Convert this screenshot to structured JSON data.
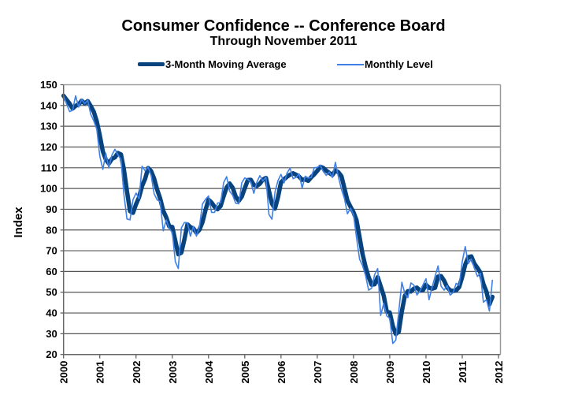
{
  "chart_data": {
    "type": "line",
    "title": "Consumer Confidence -- Conference Board",
    "subtitle": "Through November 2011",
    "xlabel": "",
    "ylabel": "Index",
    "ylim": [
      20,
      150
    ],
    "yticks": [
      20,
      30,
      40,
      50,
      60,
      70,
      80,
      90,
      100,
      110,
      120,
      130,
      140,
      150
    ],
    "xlim": [
      2000,
      2012
    ],
    "xticks": [
      "2000",
      "2001",
      "2002",
      "2003",
      "2004",
      "2005",
      "2006",
      "2007",
      "2008",
      "2009",
      "2010",
      "2011",
      "2012"
    ],
    "grid": true,
    "legend_position": "top-center",
    "start": "2000-01",
    "frequency": "monthly",
    "series": [
      {
        "name": "3-Month Moving Average",
        "color": "#08437e",
        "derived_from": "Monthly Level",
        "values": []
      },
      {
        "name": "Monthly Level",
        "color": "#3e80e6",
        "values": [
          144.7,
          140.8,
          137.1,
          137.7,
          144.7,
          139.2,
          143.0,
          140.8,
          142.5,
          135.8,
          132.6,
          128.6,
          115.7,
          109.2,
          116.9,
          109.9,
          116.1,
          118.9,
          116.3,
          114.0,
          97.0,
          85.3,
          84.9,
          94.6,
          97.8,
          95.0,
          110.7,
          108.5,
          110.3,
          106.3,
          97.4,
          94.5,
          93.7,
          79.6,
          84.9,
          80.7,
          78.8,
          64.8,
          61.4,
          81.0,
          83.6,
          83.5,
          77.0,
          81.7,
          77.0,
          81.7,
          92.5,
          94.8,
          96.4,
          88.5,
          88.5,
          93.0,
          93.1,
          102.8,
          105.7,
          98.7,
          96.7,
          92.9,
          92.6,
          102.7,
          105.1,
          104.4,
          103.0,
          97.7,
          103.1,
          106.2,
          103.6,
          105.5,
          87.5,
          85.2,
          98.3,
          103.8,
          106.8,
          102.7,
          107.5,
          109.8,
          104.7,
          105.4,
          107.0,
          100.2,
          105.9,
          105.1,
          105.3,
          110.0,
          110.2,
          111.2,
          108.2,
          106.3,
          108.0,
          105.3,
          112.6,
          105.6,
          99.5,
          95.2,
          87.8,
          90.6,
          87.3,
          76.4,
          65.9,
          62.8,
          58.1,
          51.0,
          51.9,
          58.5,
          61.4,
          38.8,
          44.7,
          38.6,
          37.4,
          25.3,
          26.9,
          40.8,
          54.8,
          49.3,
          47.4,
          54.5,
          53.4,
          48.7,
          50.6,
          53.6,
          56.5,
          46.4,
          52.3,
          57.7,
          62.7,
          52.9,
          51.0,
          53.2,
          48.6,
          49.9,
          54.3,
          53.3,
          64.8,
          72.0,
          63.8,
          66.0,
          61.7,
          57.6,
          59.2,
          45.2,
          46.4,
          40.9,
          56.0
        ]
      }
    ]
  },
  "legend": {
    "items": [
      "3-Month Moving Average",
      "Monthly Level"
    ]
  }
}
